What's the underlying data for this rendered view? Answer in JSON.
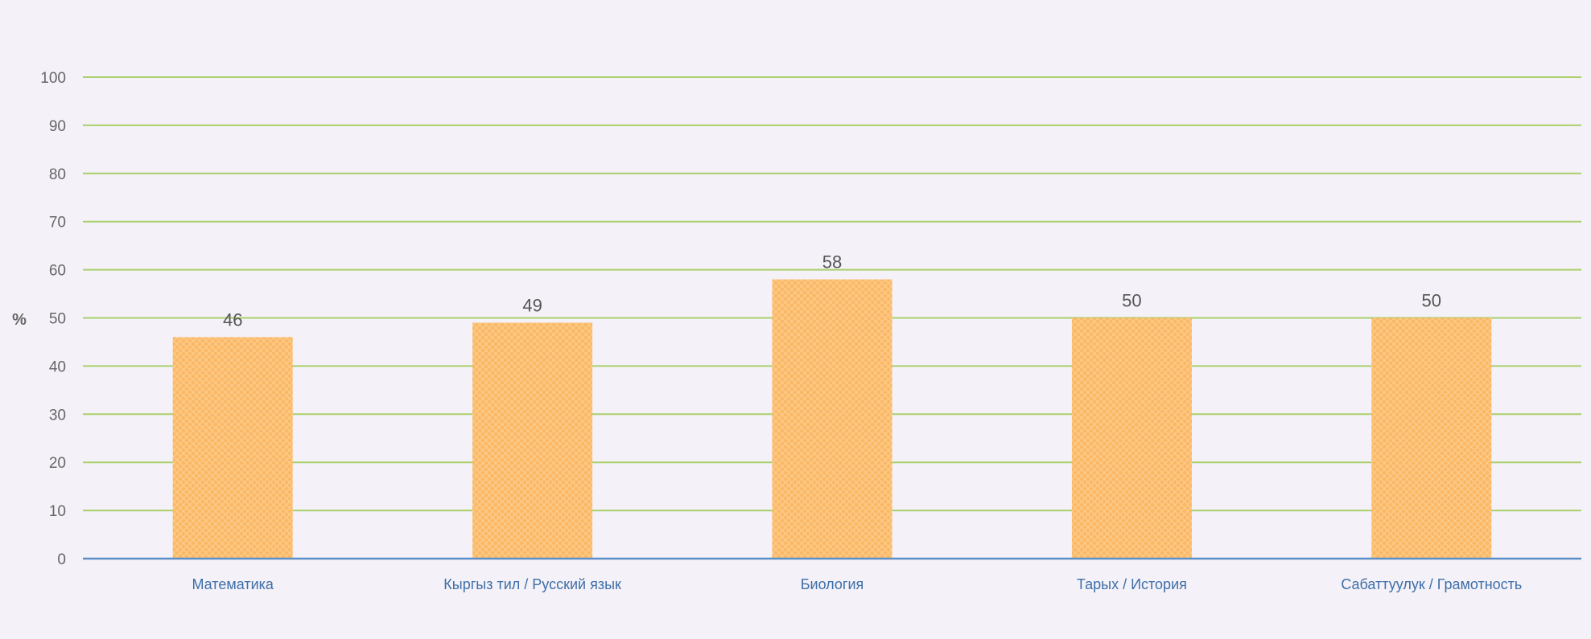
{
  "chart_data": {
    "type": "bar",
    "ylabel": "%",
    "ylim": [
      0,
      100
    ],
    "y_ticks": [
      "0",
      "10",
      "20",
      "30",
      "40",
      "50",
      "60",
      "70",
      "80",
      "90",
      "100"
    ],
    "grid": true,
    "categories": [
      "Математика",
      "Кыргыз тил / Русский язык",
      "Биология",
      "Тарых / История",
      "Сабаттуулук / Грамотность"
    ],
    "values": [
      46,
      49,
      58,
      50,
      50
    ],
    "data_labels": [
      "46",
      "49",
      "58",
      "50",
      "50"
    ]
  },
  "colors": {
    "background": "#f4f1f8",
    "bar": "#fbb865",
    "bar_hatch": "#fde2b8",
    "gridline": "#a9d06a",
    "axis": "#5b8fc7",
    "tick_label": "#666666",
    "category_label": "#3e6fa8",
    "data_label": "#555555"
  }
}
